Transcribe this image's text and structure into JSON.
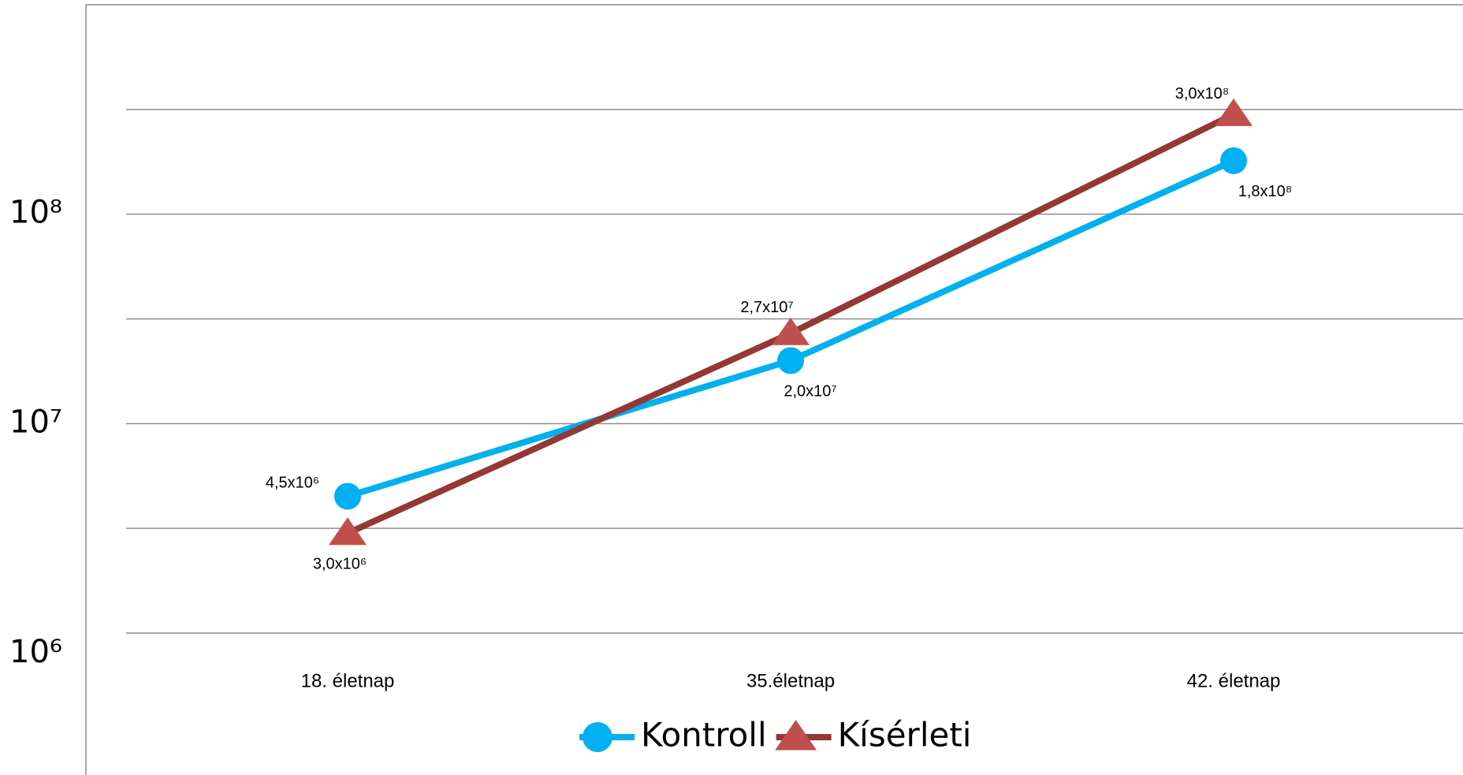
{
  "chart_data": {
    "type": "line",
    "categories": [
      "18. életnap",
      "35.életnap",
      "42. életnap"
    ],
    "series": [
      {
        "name": "Kontroll",
        "color": "#00b0f0",
        "marker": "circle",
        "values": [
          4500000,
          20000000,
          180000000
        ],
        "value_labels": [
          "4,5x10⁶",
          "2,0x10⁷",
          "1,8x10⁸"
        ]
      },
      {
        "name": "Kísérleti",
        "color": "#953735",
        "marker_color": "#c0504d",
        "marker": "triangle",
        "values": [
          3000000,
          27000000,
          300000000
        ],
        "value_labels": [
          "3,0x10⁶",
          "2,7x10⁷",
          "3,0x10⁸"
        ]
      }
    ],
    "log_scale": true,
    "ylim": [
      1000000,
      1000000000
    ],
    "yticks": [
      {
        "value": 1000000,
        "label": "10⁶"
      },
      {
        "value": 10000000,
        "label": "10⁷"
      },
      {
        "value": 100000000,
        "label": "10⁸"
      }
    ],
    "grid_lines": [
      1000000,
      3162278,
      10000000,
      31622777,
      100000000,
      316227766
    ],
    "grid": true,
    "legend": "bottom"
  }
}
